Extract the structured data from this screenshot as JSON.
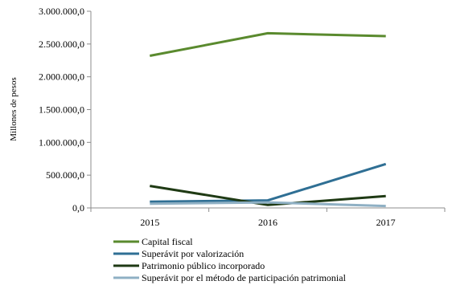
{
  "chart_data": {
    "type": "line",
    "ylabel": "Millones de pesos",
    "xlabel": "",
    "categories": [
      "2015",
      "2016",
      "2017"
    ],
    "ylim": [
      0,
      3000000
    ],
    "yticks": [
      0,
      500000,
      1000000,
      1500000,
      2000000,
      2500000,
      3000000
    ],
    "ytick_labels": [
      "0,0",
      "500.000,0",
      "1.000.000,0",
      "1.500.000,0",
      "2.000.000,0",
      "2.500.000,0",
      "3.000.000,0"
    ],
    "grid": false,
    "legend_position": "bottom",
    "series": [
      {
        "name": "Capital fiscal",
        "color": "#5a8a2e",
        "values": [
          2320000,
          2665000,
          2620000
        ]
      },
      {
        "name": "Superávit por valorización",
        "color": "#2f6f94",
        "values": [
          95000,
          115000,
          670000
        ]
      },
      {
        "name": "Patrimonio público incorporado",
        "color": "#1f3a14",
        "values": [
          335000,
          45000,
          180000
        ]
      },
      {
        "name": "Superávit por el método de participación patrimonial",
        "color": "#8fb0c4",
        "values": [
          65000,
          85000,
          30000
        ]
      }
    ]
  }
}
